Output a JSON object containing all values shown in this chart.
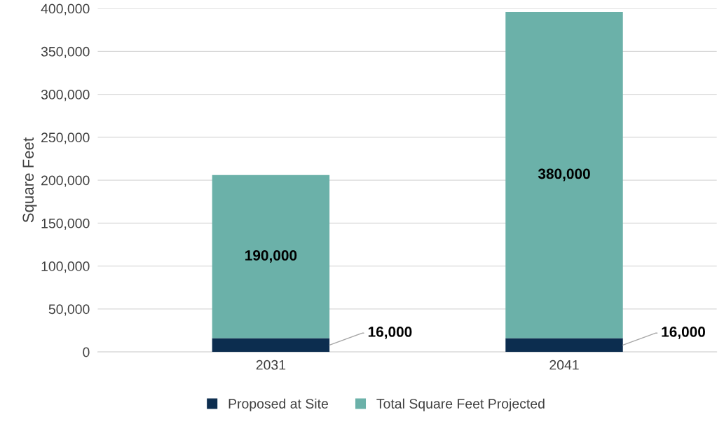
{
  "chart_data": {
    "type": "bar",
    "stacked": true,
    "ylabel": "Square Feet",
    "categories": [
      "2031",
      "2041"
    ],
    "series": [
      {
        "name": "Proposed at Site",
        "color": "#0c2d4f",
        "values": [
          16000,
          16000
        ],
        "value_labels": [
          "16,000",
          "16,000"
        ]
      },
      {
        "name": "Total Square Feet Projected",
        "color": "#6bb1a9",
        "values": [
          190000,
          380000
        ],
        "value_labels": [
          "190,000",
          "380,000"
        ]
      }
    ],
    "ylim": [
      0,
      400000
    ],
    "yticks": [
      {
        "value": 0,
        "label": "0"
      },
      {
        "value": 50000,
        "label": "50,000"
      },
      {
        "value": 100000,
        "label": "100,000"
      },
      {
        "value": 150000,
        "label": "150,000"
      },
      {
        "value": 200000,
        "label": "200,000"
      },
      {
        "value": 250000,
        "label": "250,000"
      },
      {
        "value": 300000,
        "label": "300,000"
      },
      {
        "value": 350000,
        "label": "350,000"
      },
      {
        "value": 400000,
        "label": "400,000"
      }
    ],
    "grid": "y",
    "legend": "bottom"
  }
}
